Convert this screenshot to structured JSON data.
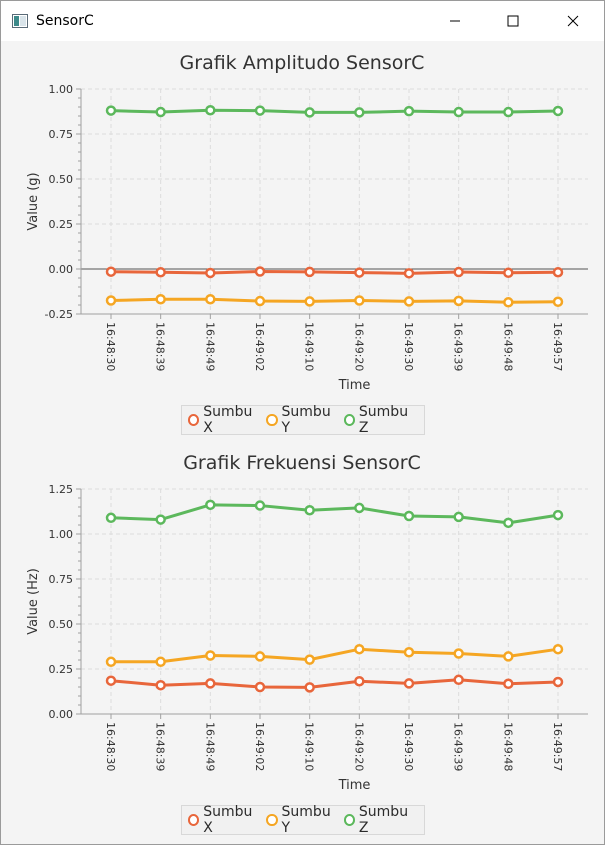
{
  "window": {
    "title": "SensorC",
    "icon": "app-window-icon",
    "minimize_icon": "minimize-icon",
    "maximize_icon": "maximize-icon",
    "close_icon": "close-icon"
  },
  "colors": {
    "x": "#e8663b",
    "y": "#f5a623",
    "z": "#5cb85c",
    "grid": "#dcdcdc",
    "axis": "#a0a0a0",
    "zero_line": "#555555"
  },
  "chart_data": [
    {
      "type": "line",
      "title": "Grafik Amplitudo SensorC",
      "xlabel": "Time",
      "ylabel": "Value (g)",
      "ylim": [
        -0.25,
        1.0
      ],
      "yticks": [
        "-0.25",
        "0.00",
        "0.25",
        "0.50",
        "0.75",
        "1.00"
      ],
      "categories": [
        "16:48:30",
        "16:48:39",
        "16:48:49",
        "16:49:02",
        "16:49:10",
        "16:49:20",
        "16:49:30",
        "16:49:39",
        "16:49:48",
        "16:49:57"
      ],
      "series": [
        {
          "name": "Sumbu X",
          "color_key": "x",
          "values": [
            -0.015,
            -0.018,
            -0.022,
            -0.014,
            -0.016,
            -0.02,
            -0.024,
            -0.017,
            -0.021,
            -0.018
          ]
        },
        {
          "name": "Sumbu Y",
          "color_key": "y",
          "values": [
            -0.175,
            -0.168,
            -0.168,
            -0.178,
            -0.18,
            -0.175,
            -0.18,
            -0.177,
            -0.185,
            -0.182
          ]
        },
        {
          "name": "Sumbu Z",
          "color_key": "z",
          "values": [
            0.88,
            0.872,
            0.882,
            0.88,
            0.87,
            0.87,
            0.877,
            0.872,
            0.872,
            0.878
          ]
        }
      ]
    },
    {
      "type": "line",
      "title": "Grafik Frekuensi SensorC",
      "xlabel": "Time",
      "ylabel": "Value (Hz)",
      "ylim": [
        0.0,
        1.25
      ],
      "yticks": [
        "0.00",
        "0.25",
        "0.50",
        "0.75",
        "1.00",
        "1.25"
      ],
      "categories": [
        "16:48:30",
        "16:48:39",
        "16:48:49",
        "16:49:02",
        "16:49:10",
        "16:49:20",
        "16:49:30",
        "16:49:39",
        "16:49:48",
        "16:49:57"
      ],
      "series": [
        {
          "name": "Sumbu X",
          "color_key": "x",
          "values": [
            0.185,
            0.16,
            0.17,
            0.15,
            0.148,
            0.182,
            0.17,
            0.19,
            0.168,
            0.178
          ]
        },
        {
          "name": "Sumbu Y",
          "color_key": "y",
          "values": [
            0.29,
            0.29,
            0.325,
            0.32,
            0.302,
            0.36,
            0.343,
            0.336,
            0.32,
            0.36
          ]
        },
        {
          "name": "Sumbu Z",
          "color_key": "z",
          "values": [
            1.09,
            1.08,
            1.162,
            1.158,
            1.132,
            1.145,
            1.1,
            1.095,
            1.062,
            1.105
          ]
        }
      ]
    }
  ],
  "legends": [
    {
      "items": [
        "Sumbu X",
        "Sumbu Y",
        "Sumbu Z"
      ]
    },
    {
      "items": [
        "Sumbu X",
        "Sumbu Y",
        "Sumbu Z"
      ]
    }
  ]
}
